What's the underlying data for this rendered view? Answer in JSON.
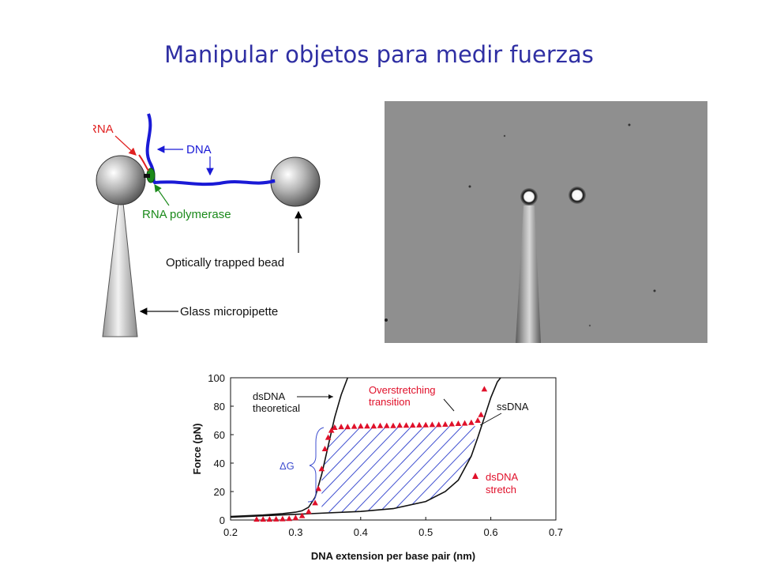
{
  "title": "Manipular objetos para medir fuerzas",
  "colors": {
    "title": "#2f2fa3",
    "dna": "#1a1ad6",
    "rna": "#e02020",
    "polymerase": "#1a8a1a",
    "data_points": "#e0102a",
    "hatch": "#3f4fd0"
  },
  "diagram": {
    "labels": {
      "rna": "RNA",
      "dna": "DNA",
      "polymerase": "RNA polymerase",
      "bead": "Optically trapped bead",
      "pipette": "Glass micropipette"
    }
  },
  "chart_data": {
    "type": "scatter",
    "title": "",
    "xlabel": "DNA extension per base pair (nm)",
    "ylabel": "Force (pN)",
    "xlim": [
      0.2,
      0.7
    ],
    "ylim": [
      0,
      100
    ],
    "xticks": [
      "0.2",
      "0.3",
      "0.4",
      "0.5",
      "0.6",
      "0.7"
    ],
    "yticks": [
      "0",
      "20",
      "40",
      "60",
      "80",
      "100"
    ],
    "grid": false,
    "annotations": {
      "dsdna_theoretical": [
        "dsDNA",
        "theoretical"
      ],
      "overstretching": [
        "Overstretching",
        "transition"
      ],
      "ssdna": "ssDNA",
      "legend": [
        "dsDNA",
        "stretch"
      ],
      "delta_g": "ΔG"
    },
    "series": [
      {
        "name": "dsDNA stretch",
        "points": [
          [
            0.24,
            0.5
          ],
          [
            0.25,
            0.5
          ],
          [
            0.26,
            0.5
          ],
          [
            0.27,
            0.6
          ],
          [
            0.28,
            0.8
          ],
          [
            0.29,
            1
          ],
          [
            0.3,
            1.5
          ],
          [
            0.31,
            3
          ],
          [
            0.32,
            6
          ],
          [
            0.33,
            12
          ],
          [
            0.335,
            22
          ],
          [
            0.34,
            36
          ],
          [
            0.345,
            50
          ],
          [
            0.35,
            58
          ],
          [
            0.355,
            63
          ],
          [
            0.36,
            65
          ],
          [
            0.37,
            65.5
          ],
          [
            0.38,
            65.5
          ],
          [
            0.39,
            65.8
          ],
          [
            0.4,
            66
          ],
          [
            0.41,
            66
          ],
          [
            0.42,
            66
          ],
          [
            0.43,
            66.2
          ],
          [
            0.44,
            66.3
          ],
          [
            0.45,
            66.3
          ],
          [
            0.46,
            66.5
          ],
          [
            0.47,
            66.5
          ],
          [
            0.48,
            66.6
          ],
          [
            0.49,
            66.7
          ],
          [
            0.5,
            66.8
          ],
          [
            0.51,
            67
          ],
          [
            0.52,
            67
          ],
          [
            0.53,
            67.2
          ],
          [
            0.54,
            67.5
          ],
          [
            0.55,
            67.8
          ],
          [
            0.56,
            68
          ],
          [
            0.57,
            68.5
          ],
          [
            0.58,
            70
          ],
          [
            0.585,
            74
          ],
          [
            0.59,
            92
          ]
        ]
      }
    ],
    "curves": {
      "dsdna_theoretical": [
        [
          0.2,
          2.5
        ],
        [
          0.25,
          3.5
        ],
        [
          0.28,
          4.5
        ],
        [
          0.3,
          5.5
        ],
        [
          0.31,
          6.5
        ],
        [
          0.32,
          9
        ],
        [
          0.33,
          16
        ],
        [
          0.34,
          32
        ],
        [
          0.35,
          52
        ],
        [
          0.36,
          72
        ],
        [
          0.37,
          88
        ],
        [
          0.38,
          100
        ]
      ],
      "ssdna": [
        [
          0.2,
          2
        ],
        [
          0.3,
          4
        ],
        [
          0.4,
          6
        ],
        [
          0.45,
          8
        ],
        [
          0.5,
          13
        ],
        [
          0.53,
          20
        ],
        [
          0.55,
          28
        ],
        [
          0.57,
          45
        ],
        [
          0.58,
          58
        ],
        [
          0.59,
          72
        ],
        [
          0.6,
          86
        ],
        [
          0.61,
          97
        ],
        [
          0.615,
          100
        ]
      ]
    }
  }
}
